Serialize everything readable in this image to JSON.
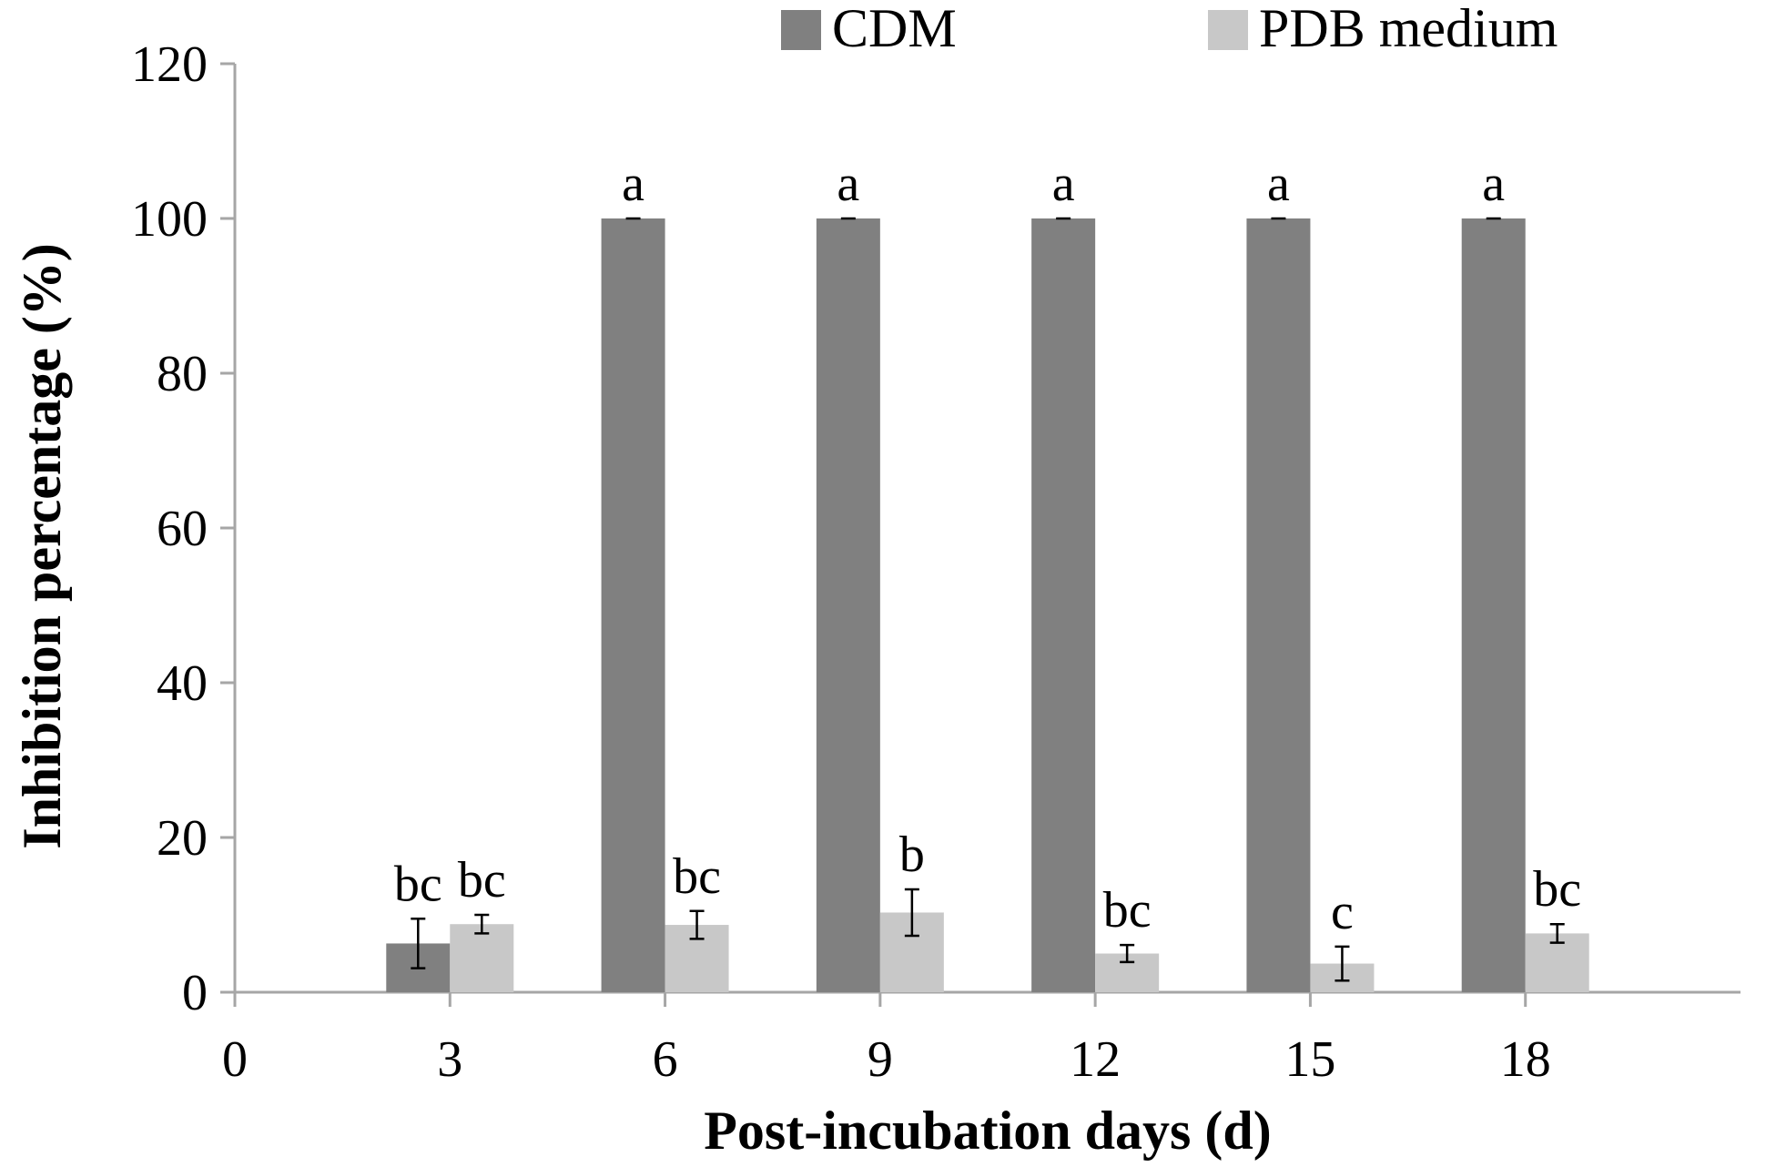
{
  "chart_data": {
    "type": "bar",
    "title": "",
    "xlabel": "Post-incubation days (d)",
    "ylabel": "Inhibition percentage (%)",
    "ylim": [
      0,
      120
    ],
    "yticks": [
      0,
      20,
      40,
      60,
      80,
      100,
      120
    ],
    "xticks": [
      0,
      3,
      6,
      9,
      12,
      15,
      18
    ],
    "xlim": [
      0,
      21
    ],
    "categories": [
      3,
      6,
      9,
      12,
      15,
      18
    ],
    "legend_position": "top",
    "grid": false,
    "series": [
      {
        "name": "CDM",
        "color": "#808080",
        "values": [
          6.3,
          100,
          100,
          100,
          100,
          100
        ],
        "errors": [
          3.2,
          0,
          0,
          0,
          0,
          0
        ],
        "letters": [
          "bc",
          "a",
          "a",
          "a",
          "a",
          "a"
        ]
      },
      {
        "name": "PDB medium",
        "color": "#c8c8c8",
        "values": [
          8.8,
          8.7,
          10.3,
          5.0,
          3.7,
          7.6
        ],
        "errors": [
          1.2,
          1.8,
          3.0,
          1.1,
          2.2,
          1.2
        ],
        "letters": [
          "bc",
          "bc",
          "b",
          "bc",
          "c",
          "bc"
        ]
      }
    ]
  }
}
